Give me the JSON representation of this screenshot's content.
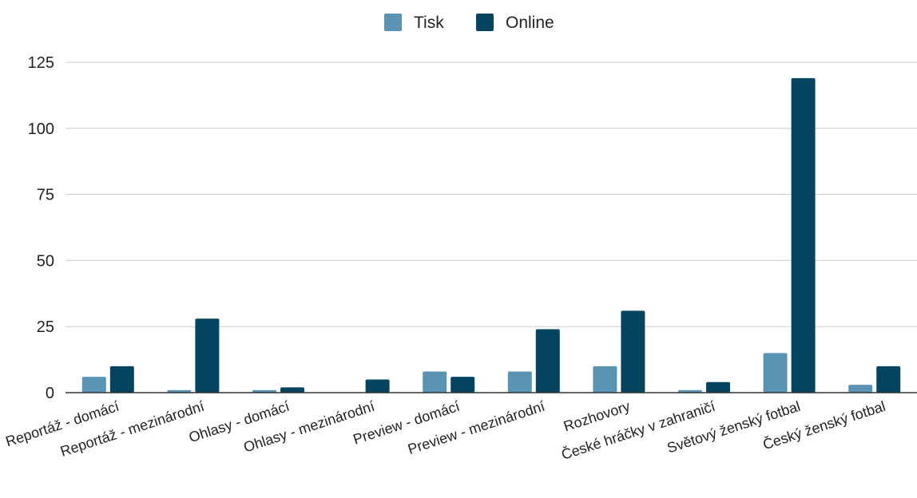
{
  "chart_data": {
    "type": "bar",
    "categories": [
      "Reportáž - domácí",
      "Reportáž - mezinárodní",
      "Ohlasy - domácí",
      "Ohlasy - mezinárodní",
      "Preview - domácí",
      "Preview - mezinárodní",
      "Rozhovory",
      "České hráčky v zahraničí",
      "Světový ženský fotbal",
      "Český ženský fotbal"
    ],
    "series": [
      {
        "name": "Tisk",
        "color": "#5b93b2",
        "values": [
          6,
          1,
          1,
          0,
          8,
          8,
          10,
          1,
          15,
          3
        ]
      },
      {
        "name": "Online",
        "color": "#05445e",
        "values": [
          10,
          28,
          2,
          5,
          6,
          24,
          31,
          4,
          119,
          10
        ]
      }
    ],
    "ylim": [
      0,
      125
    ],
    "yticks": [
      0,
      25,
      50,
      75,
      100,
      125
    ],
    "grid": true,
    "legend_position": "top-center"
  }
}
